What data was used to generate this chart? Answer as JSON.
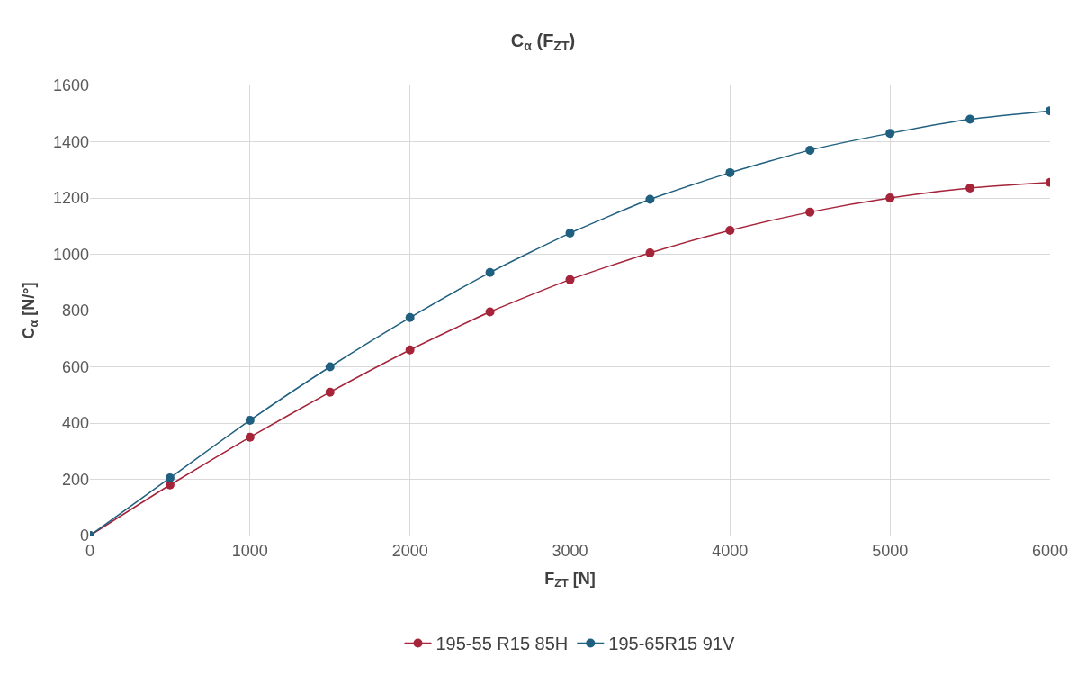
{
  "chart_data": {
    "type": "line",
    "title": "C$_{α}$ (F$_{ZT}$)",
    "xlabel": "F$_{ZT}$ [N]",
    "ylabel": "C$_{α}$ [N/°]",
    "x": [
      0,
      500,
      1000,
      1500,
      2000,
      2500,
      3000,
      3500,
      4000,
      4500,
      5000,
      5500,
      6000
    ],
    "series": [
      {
        "name": "195-55 R15 85H",
        "color": "#a5243a",
        "values": [
          0,
          180,
          350,
          510,
          660,
          795,
          910,
          1005,
          1085,
          1150,
          1200,
          1235,
          1255
        ]
      },
      {
        "name": "195-65R15 91V",
        "color": "#1f5f7f",
        "values": [
          0,
          205,
          410,
          600,
          775,
          935,
          1075,
          1195,
          1290,
          1370,
          1430,
          1480,
          1510
        ]
      }
    ],
    "xlim": [
      0,
      6000
    ],
    "xticks": [
      0,
      1000,
      2000,
      3000,
      4000,
      5000,
      6000
    ],
    "ylim": [
      0,
      1600
    ],
    "yticks": [
      0,
      200,
      400,
      600,
      800,
      1000,
      1200,
      1400,
      1600
    ],
    "grid": true,
    "legend": "bottom",
    "marker": "circle",
    "line_style": "solid"
  }
}
